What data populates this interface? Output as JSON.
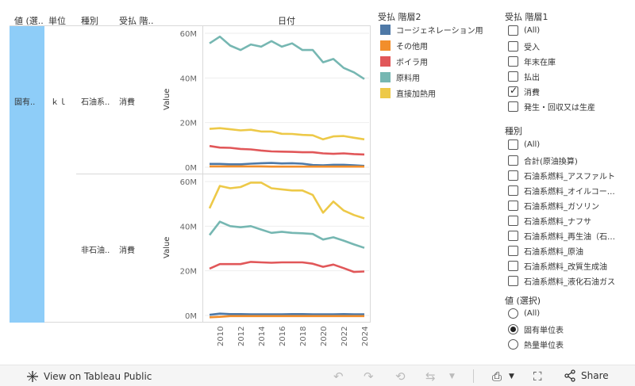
{
  "headers": {
    "value_select": "値 (選..",
    "unit": "単位",
    "type": "種別",
    "flow": "受払 階..",
    "date": "日付"
  },
  "rows": [
    {
      "value_select": "固有..",
      "unit": "ｋｌ",
      "type": "石油系..",
      "flow": "消費"
    },
    {
      "type": "非石油..",
      "flow": "消費"
    }
  ],
  "axis_title": "Value",
  "legend": {
    "title": "受払 階層2",
    "items": [
      {
        "label": "コージェネレーション用",
        "color": "#4e79a7"
      },
      {
        "label": "その他用",
        "color": "#f28e2b"
      },
      {
        "label": "ボイラ用",
        "color": "#e15759"
      },
      {
        "label": "原料用",
        "color": "#76b7b2"
      },
      {
        "label": "直接加熱用",
        "color": "#edc948"
      }
    ]
  },
  "filter1": {
    "title": "受払 階層1",
    "items": [
      {
        "label": "(All)",
        "checked": false
      },
      {
        "label": "受入",
        "checked": false
      },
      {
        "label": "年末在庫",
        "checked": false
      },
      {
        "label": "払出",
        "checked": false
      },
      {
        "label": "消費",
        "checked": true
      },
      {
        "label": "発生・回収又は生産",
        "checked": false
      }
    ]
  },
  "filter2": {
    "title": "種別",
    "items": [
      {
        "label": "(All)",
        "checked": false
      },
      {
        "label": "合計(原油換算)",
        "checked": false
      },
      {
        "label": "石油系燃料_アスファルト",
        "checked": false
      },
      {
        "label": "石油系燃料_オイルコー…",
        "checked": false
      },
      {
        "label": "石油系燃料_ガソリン",
        "checked": false
      },
      {
        "label": "石油系燃料_ナフサ",
        "checked": false
      },
      {
        "label": "石油系燃料_再生油（石…",
        "checked": false
      },
      {
        "label": "石油系燃料_原油",
        "checked": false
      },
      {
        "label": "石油系燃料_改質生成油",
        "checked": false
      },
      {
        "label": "石油系燃料_液化石油ガス",
        "checked": false
      }
    ]
  },
  "filter3": {
    "title": "値 (選択)",
    "items": [
      {
        "label": "(All)",
        "checked": false
      },
      {
        "label": "固有単位表",
        "checked": true
      },
      {
        "label": "熱量単位表",
        "checked": false
      }
    ]
  },
  "toolbar": {
    "view_label": "View on Tableau Public",
    "share_label": "Share"
  },
  "chart_data": [
    {
      "type": "line",
      "title": "石油系.. 消費",
      "x": [
        2009,
        2010,
        2011,
        2012,
        2013,
        2014,
        2015,
        2016,
        2017,
        2018,
        2019,
        2020,
        2021,
        2022,
        2023,
        2024
      ],
      "xticks": [
        "2010",
        "2012",
        "2014",
        "2016",
        "2018",
        "2020",
        "2022",
        "2024"
      ],
      "yticks": [
        "0M",
        "20M",
        "40M",
        "60M"
      ],
      "ylim": [
        0,
        60
      ],
      "ylabel": "Value",
      "series": [
        {
          "name": "コージェネレーション用",
          "color": "#4e79a7",
          "values": [
            1.5,
            1.5,
            1.3,
            1.3,
            1.6,
            1.8,
            1.9,
            1.7,
            1.8,
            1.6,
            1.0,
            0.9,
            1.1,
            1.1,
            0.9,
            0.6
          ]
        },
        {
          "name": "その他用",
          "color": "#f28e2b",
          "values": [
            0.4,
            0.4,
            0.4,
            0.4,
            0.4,
            0.4,
            0.3,
            0.3,
            0.3,
            0.3,
            0.3,
            0.3,
            0.3,
            0.3,
            0.3,
            0.3
          ]
        },
        {
          "name": "ボイラ用",
          "color": "#e15759",
          "values": [
            9.5,
            8.8,
            8.7,
            8.2,
            8.0,
            7.5,
            7.1,
            7.0,
            6.9,
            6.7,
            6.7,
            6.2,
            6.0,
            6.2,
            5.9,
            5.7
          ]
        },
        {
          "name": "原料用",
          "color": "#76b7b2",
          "values": [
            55.5,
            58.5,
            54.5,
            52.5,
            55.0,
            54.0,
            56.5,
            54.0,
            55.5,
            52.5,
            52.5,
            47.0,
            48.5,
            44.5,
            42.5,
            39.5
          ]
        },
        {
          "name": "直接加熱用",
          "color": "#edc948",
          "values": [
            17.2,
            17.5,
            17.0,
            16.5,
            16.8,
            16.0,
            16.0,
            15.0,
            14.9,
            14.5,
            14.3,
            12.5,
            13.8,
            14.0,
            13.2,
            12.5
          ]
        }
      ]
    },
    {
      "type": "line",
      "title": "非石油.. 消費",
      "x": [
        2009,
        2010,
        2011,
        2012,
        2013,
        2014,
        2015,
        2016,
        2017,
        2018,
        2019,
        2020,
        2021,
        2022,
        2023,
        2024
      ],
      "xticks": [
        "2010",
        "2012",
        "2014",
        "2016",
        "2018",
        "2020",
        "2022",
        "2024"
      ],
      "yticks": [
        "0M",
        "20M",
        "40M",
        "60M"
      ],
      "ylim": [
        0,
        60
      ],
      "ylabel": "Value",
      "series": [
        {
          "name": "コージェネレーション用",
          "color": "#4e79a7",
          "values": [
            0.3,
            0.8,
            0.6,
            0.6,
            0.5,
            0.5,
            0.5,
            0.5,
            0.6,
            0.6,
            0.5,
            0.5,
            0.5,
            0.6,
            0.5,
            0.5
          ]
        },
        {
          "name": "その他用",
          "color": "#f28e2b",
          "values": [
            -0.8,
            -0.6,
            -0.3,
            -0.3,
            -0.3,
            -0.3,
            -0.3,
            -0.3,
            -0.3,
            -0.3,
            -0.3,
            -0.3,
            -0.3,
            -0.3,
            -0.3,
            -0.3
          ]
        },
        {
          "name": "ボイラ用",
          "color": "#e15759",
          "values": [
            21.0,
            23.0,
            23.0,
            23.0,
            24.0,
            23.8,
            23.6,
            23.8,
            23.8,
            23.8,
            23.2,
            21.8,
            22.8,
            21.2,
            19.5,
            19.7
          ]
        },
        {
          "name": "原料用",
          "color": "#76b7b2",
          "values": [
            36.0,
            42.0,
            40.0,
            39.5,
            40.0,
            38.5,
            37.0,
            37.5,
            37.0,
            36.8,
            36.5,
            34.0,
            35.0,
            33.5,
            31.8,
            30.3
          ]
        },
        {
          "name": "直接加熱用",
          "color": "#edc948",
          "values": [
            48.0,
            58.0,
            57.0,
            57.5,
            59.5,
            59.5,
            57.0,
            56.5,
            56.0,
            56.0,
            54.0,
            46.0,
            51.0,
            47.0,
            45.0,
            43.5
          ]
        }
      ]
    }
  ]
}
